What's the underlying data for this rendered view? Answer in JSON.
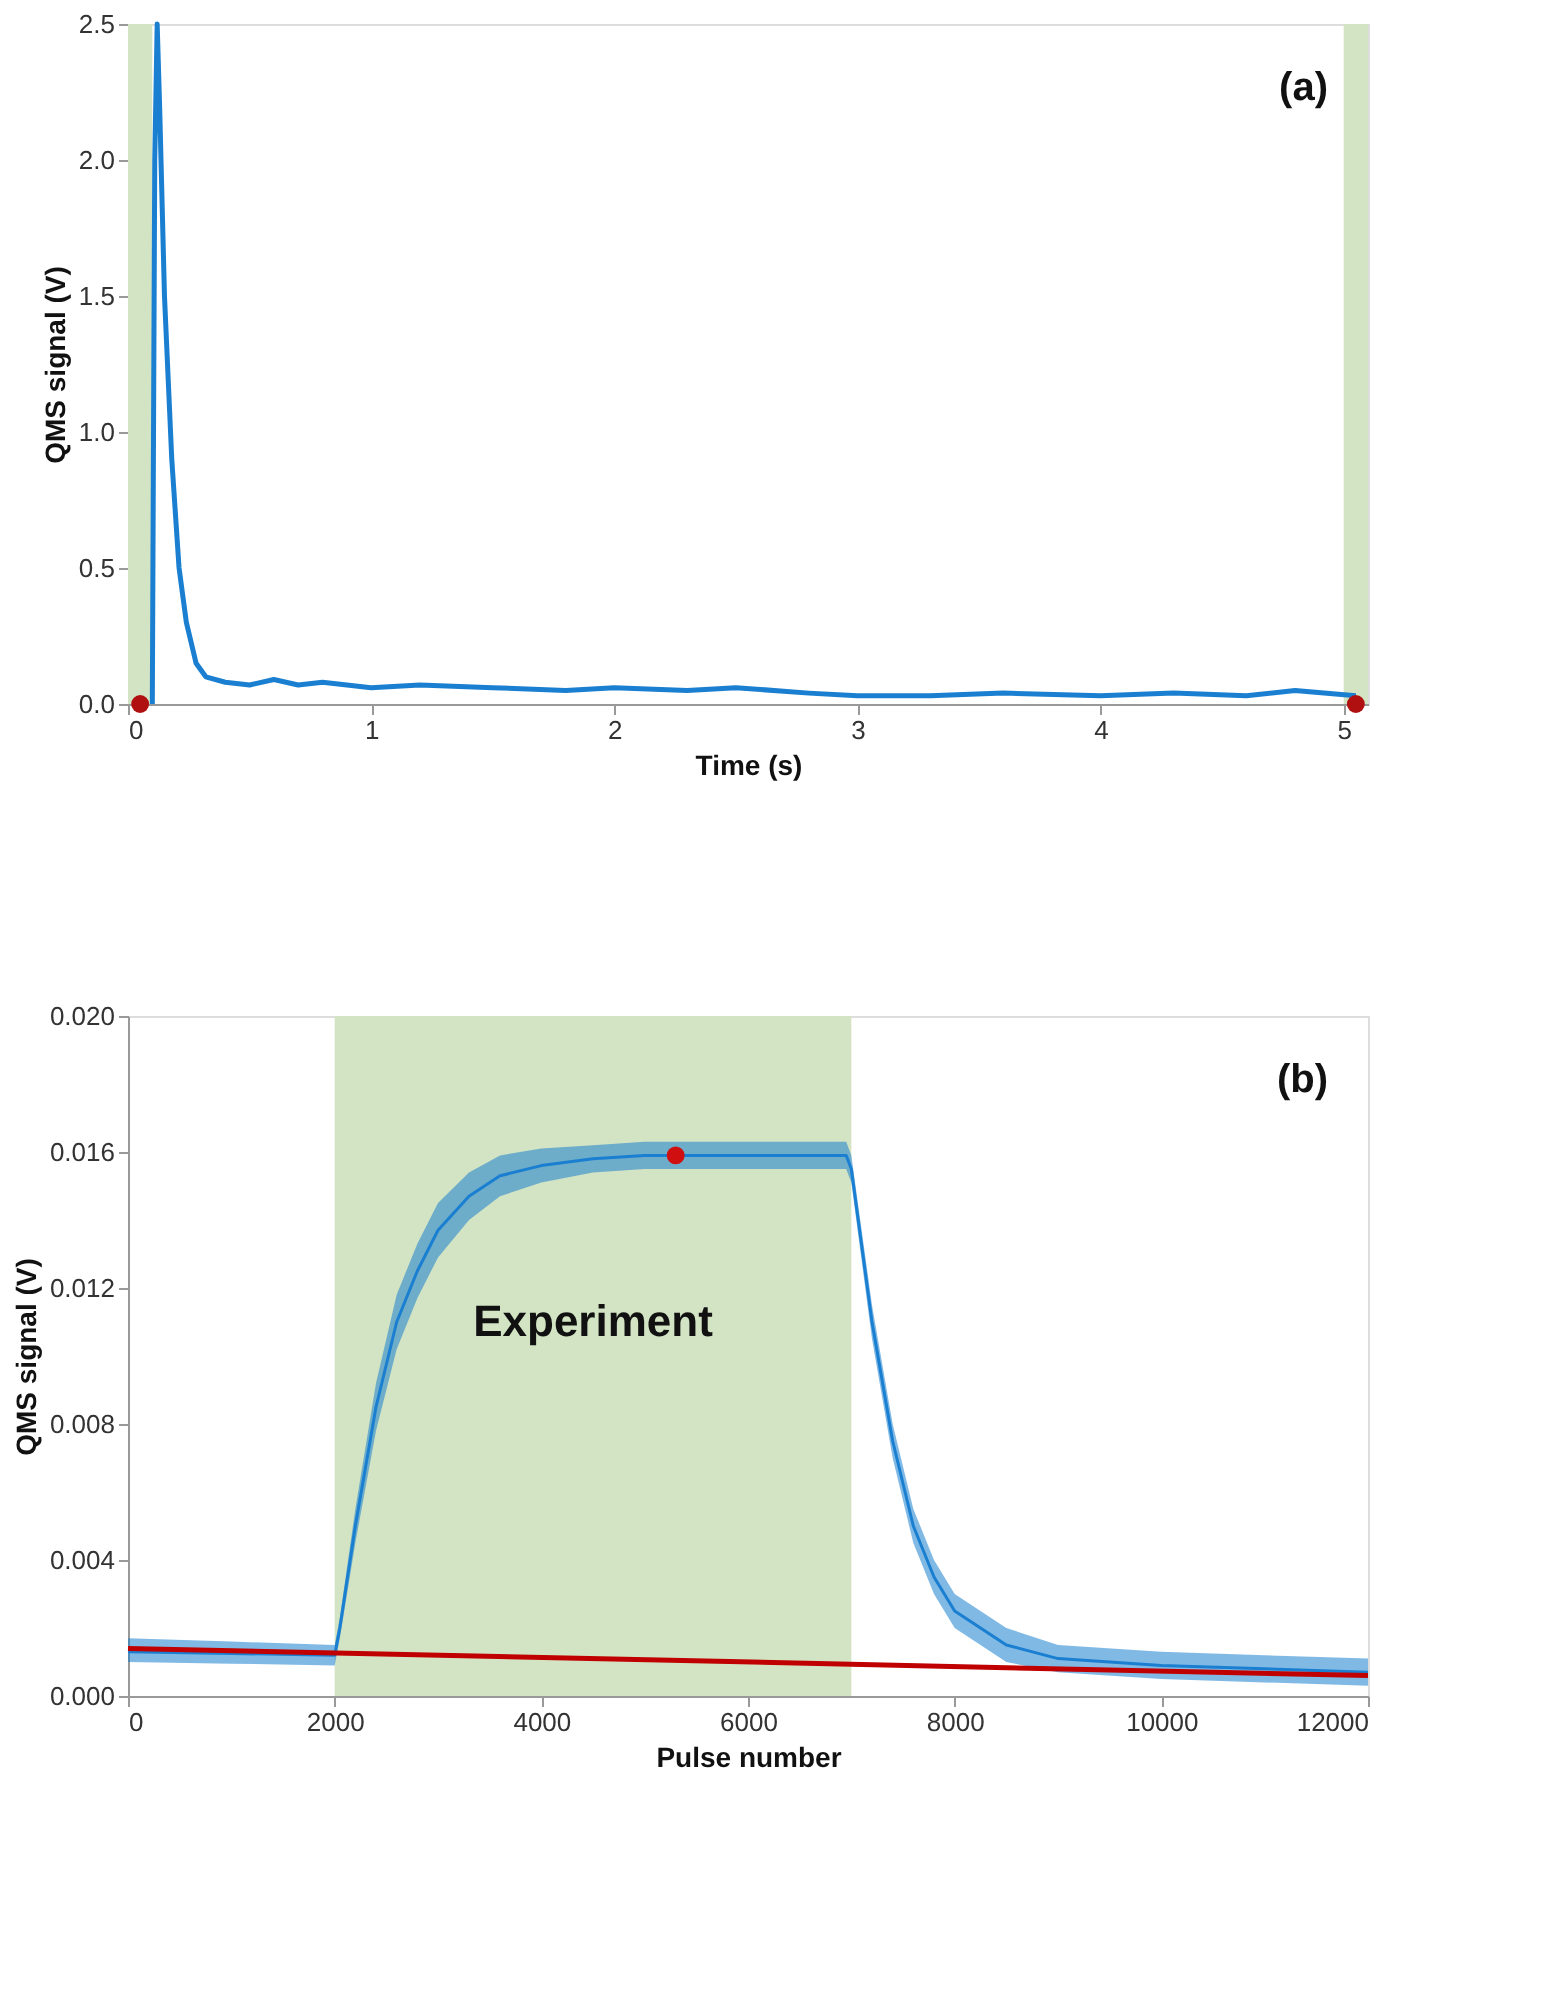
{
  "chart_data": [
    {
      "type": "line",
      "title": "(a)",
      "xlabel": "Time (s)",
      "ylabel": "QMS signal (V)",
      "xlim": [
        0,
        5.1
      ],
      "xticks": [
        0,
        1,
        2,
        3,
        4,
        5
      ],
      "ylim": [
        0,
        2.5
      ],
      "yticks": [
        {
          "value": 0,
          "label": "0.0"
        },
        0.5,
        {
          "value": 1,
          "label": "1.0"
        },
        1.5,
        {
          "value": 2,
          "label": "2.0"
        },
        2.5
      ],
      "grid": false,
      "bands": [
        {
          "axis": "x",
          "from": 0,
          "to": 0.1,
          "color": "#d3e4c4"
        },
        {
          "axis": "x",
          "from": 5.0,
          "to": 5.1,
          "color": "#d3e4c4"
        }
      ],
      "series": [
        {
          "color": "#1a7fd0",
          "x": [
            0.1,
            0.11,
            0.12,
            0.13,
            0.15,
            0.18,
            0.21,
            0.24,
            0.28,
            0.32,
            0.4,
            0.5,
            0.6,
            0.7,
            0.8,
            1.0,
            1.2,
            1.5,
            1.8,
            2.0,
            2.3,
            2.5,
            2.8,
            3.0,
            3.3,
            3.6,
            4.0,
            4.3,
            4.6,
            4.8,
            5.05
          ],
          "values": [
            0.0,
            2.0,
            2.5,
            2.2,
            1.5,
            0.9,
            0.5,
            0.3,
            0.15,
            0.1,
            0.08,
            0.07,
            0.09,
            0.07,
            0.08,
            0.06,
            0.07,
            0.06,
            0.05,
            0.06,
            0.05,
            0.06,
            0.04,
            0.03,
            0.03,
            0.04,
            0.03,
            0.04,
            0.03,
            0.05,
            0.03
          ]
        },
        {
          "type": "scatter",
          "color": "#b01010",
          "x": [
            0.05,
            5.05
          ],
          "values": [
            0.0,
            0.0
          ]
        }
      ]
    },
    {
      "type": "line",
      "title": "(b)",
      "xlabel": "Pulse number",
      "ylabel": "QMS signal (V)",
      "xlim": [
        0,
        12000
      ],
      "xticks": [
        0,
        2000,
        4000,
        6000,
        8000,
        10000,
        12000
      ],
      "ylim": [
        0,
        0.02
      ],
      "yticks": [
        {
          "value": 0,
          "label": "0.000"
        },
        {
          "value": 0.004,
          "label": "0.004"
        },
        {
          "value": 0.008,
          "label": "0.008"
        },
        {
          "value": 0.012,
          "label": "0.012"
        },
        {
          "value": 0.016,
          "label": "0.016"
        },
        {
          "value": 0.02,
          "label": "0.020"
        }
      ],
      "grid": false,
      "bands": [
        {
          "axis": "x",
          "from": 2000,
          "to": 7000,
          "label": "Experiment",
          "color": "#d3e4c4"
        }
      ],
      "series": [
        {
          "color": "#1a7fd0",
          "x": [
            0,
            1000,
            2000,
            2050,
            2200,
            2400,
            2600,
            2800,
            3000,
            3300,
            3600,
            4000,
            4500,
            5000,
            6000,
            6950,
            7000,
            7200,
            7400,
            7600,
            7800,
            8000,
            8500,
            9000,
            10000,
            11000,
            12000
          ],
          "values": [
            0.0013,
            0.00125,
            0.0012,
            0.002,
            0.005,
            0.0085,
            0.011,
            0.0125,
            0.0137,
            0.0147,
            0.0153,
            0.0156,
            0.0158,
            0.0159,
            0.0159,
            0.0159,
            0.0155,
            0.011,
            0.0075,
            0.005,
            0.0035,
            0.0025,
            0.0015,
            0.0011,
            0.0009,
            0.0008,
            0.0007
          ],
          "lower": [
            0.001,
            0.00095,
            0.0009,
            0.0017,
            0.0045,
            0.0078,
            0.0102,
            0.0117,
            0.0129,
            0.014,
            0.0147,
            0.0151,
            0.0154,
            0.0155,
            0.0155,
            0.0155,
            0.0151,
            0.0105,
            0.007,
            0.0045,
            0.003,
            0.002,
            0.001,
            0.0007,
            0.0005,
            0.0004,
            0.0003
          ],
          "upper": [
            0.0017,
            0.0016,
            0.0015,
            0.0023,
            0.0055,
            0.0092,
            0.0118,
            0.0133,
            0.0145,
            0.0154,
            0.0159,
            0.0161,
            0.0162,
            0.0163,
            0.0163,
            0.0163,
            0.0159,
            0.0115,
            0.008,
            0.0055,
            0.004,
            0.003,
            0.002,
            0.0015,
            0.0013,
            0.0012,
            0.0011
          ]
        },
        {
          "color": "#c00000",
          "x": [
            0,
            12000
          ],
          "values": [
            0.0014,
            0.0006
          ]
        },
        {
          "type": "scatter",
          "color": "#d01010",
          "x": [
            5300
          ],
          "values": [
            0.0159
          ]
        }
      ]
    }
  ]
}
